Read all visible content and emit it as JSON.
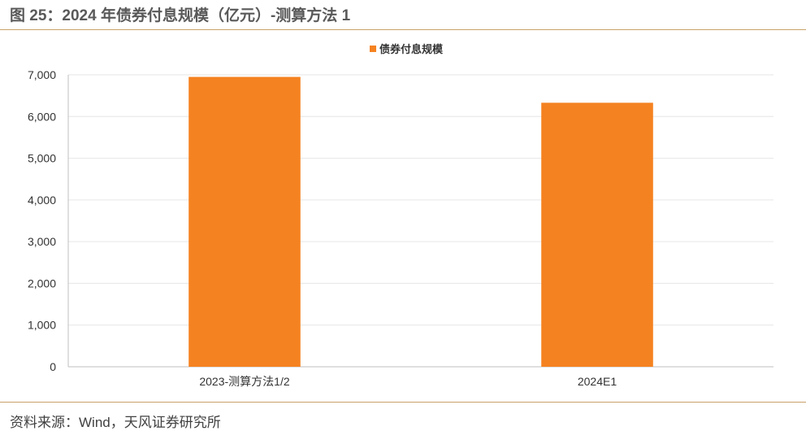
{
  "header": {
    "title": "图 25：2024 年债券付息规模（亿元）-测算方法 1"
  },
  "footer": {
    "source": "资料来源：Wind，天风证券研究所"
  },
  "colors": {
    "bar": "#f58220",
    "rule": "#c9a26a",
    "grid": "#e6e6e6",
    "axis": "#bfbfbf"
  },
  "chart_data": {
    "type": "bar",
    "categories": [
      "2023-测算方法1/2",
      "2024E1"
    ],
    "series": [
      {
        "name": "债券付息规模",
        "values": [
          6950,
          6330
        ]
      }
    ],
    "ylim": [
      0,
      7000
    ],
    "yticks": [
      0,
      1000,
      2000,
      3000,
      4000,
      5000,
      6000,
      7000
    ],
    "ytick_labels": [
      "0",
      "1,000",
      "2,000",
      "3,000",
      "4,000",
      "5,000",
      "6,000",
      "7,000"
    ],
    "xlabel": "",
    "ylabel": "",
    "grid": true,
    "legend_position": "top-center"
  }
}
